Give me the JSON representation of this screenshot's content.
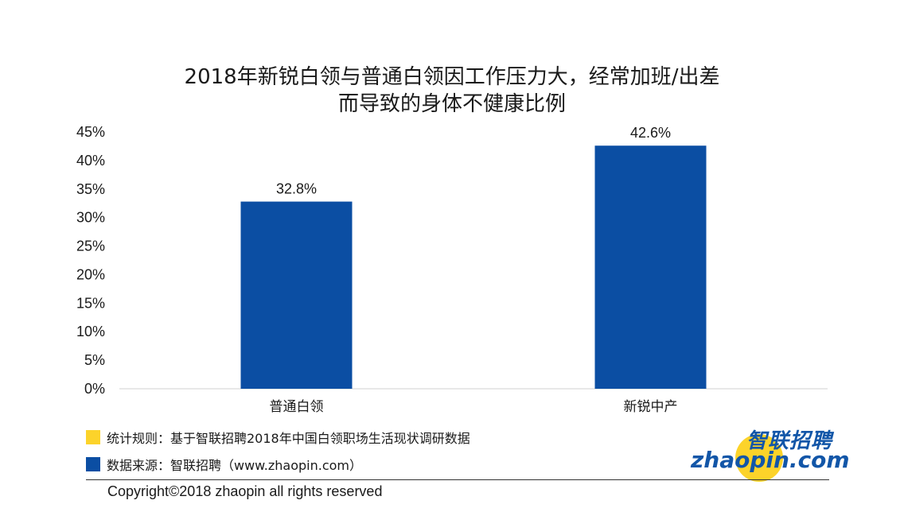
{
  "colors": {
    "bar": "#0b4ea3",
    "axis": "#d0d0d0",
    "legend_rule": "#fcd32a",
    "legend_source": "#0b4ea3",
    "logo_text": "#1256a8",
    "logo_circle": "#fcd32a"
  },
  "chart_data": {
    "type": "bar",
    "title_lines": [
      "2018年新锐白领与普通白领因工作压力大，经常加班/出差",
      "而导致的身体不健康比例"
    ],
    "categories": [
      "普通白领",
      "新锐中产"
    ],
    "values": [
      32.8,
      42.6
    ],
    "data_labels": [
      "32.8%",
      "42.6%"
    ],
    "ylim": [
      0,
      45
    ],
    "y_ticks": [
      0,
      5,
      10,
      15,
      20,
      25,
      30,
      35,
      40,
      45
    ],
    "y_tick_labels": [
      "0%",
      "5%",
      "10%",
      "15%",
      "20%",
      "25%",
      "30%",
      "35%",
      "40%",
      "45%"
    ],
    "grid": false,
    "legend": "none"
  },
  "legend": {
    "rule_text": "统计规则：基于智联招聘2018年中国白领职场生活现状调研数据",
    "source_text": "数据来源：智联招聘（www.zhaopin.com）"
  },
  "logo": {
    "cn": "智联招聘",
    "en": "zhaopin.com",
    "icon": "zhaopin-logo-circle"
  },
  "footer": {
    "copyright": "Copyright©2018 zhaopin all rights reserved"
  }
}
